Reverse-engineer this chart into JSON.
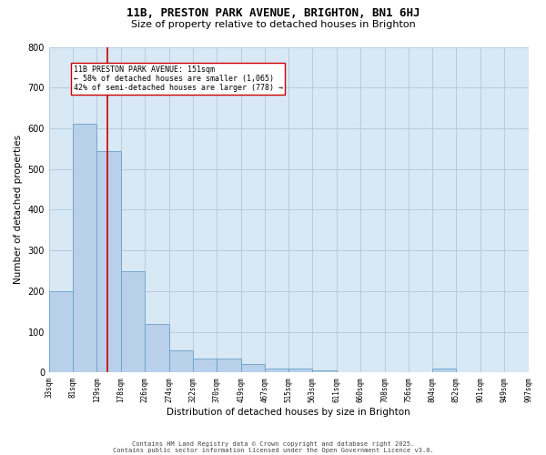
{
  "title_line1": "11B, PRESTON PARK AVENUE, BRIGHTON, BN1 6HJ",
  "title_line2": "Size of property relative to detached houses in Brighton",
  "xlabel": "Distribution of detached houses by size in Brighton",
  "ylabel": "Number of detached properties",
  "bar_edges": [
    33,
    81,
    129,
    178,
    226,
    274,
    322,
    370,
    419,
    467,
    515,
    563,
    611,
    660,
    708,
    756,
    804,
    852,
    901,
    949,
    997
  ],
  "bar_heights": [
    200,
    610,
    545,
    250,
    120,
    55,
    35,
    35,
    20,
    10,
    10,
    5,
    0,
    0,
    0,
    0,
    10,
    0,
    0,
    0
  ],
  "bar_color": "#b8d0ea",
  "bar_edge_color": "#6aa0cc",
  "vline_x": 151,
  "vline_color": "#cc0000",
  "annotation_text": "11B PRESTON PARK AVENUE: 151sqm\n← 58% of detached houses are smaller (1,065)\n42% of semi-detached houses are larger (778) →",
  "ylim": [
    0,
    800
  ],
  "yticks": [
    0,
    100,
    200,
    300,
    400,
    500,
    600,
    700,
    800
  ],
  "grid_color": "#b8ccdf",
  "bg_color": "#d8e8f4",
  "footer_line1": "Contains HM Land Registry data © Crown copyright and database right 2025.",
  "footer_line2": "Contains public sector information licensed under the Open Government Licence v3.0.",
  "tick_labels": [
    "33sqm",
    "81sqm",
    "129sqm",
    "178sqm",
    "226sqm",
    "274sqm",
    "322sqm",
    "370sqm",
    "419sqm",
    "467sqm",
    "515sqm",
    "563sqm",
    "611sqm",
    "660sqm",
    "708sqm",
    "756sqm",
    "804sqm",
    "852sqm",
    "901sqm",
    "949sqm",
    "997sqm"
  ],
  "title_fontsize": 9,
  "subtitle_fontsize": 8,
  "ylabel_fontsize": 7.5,
  "xlabel_fontsize": 7.5,
  "ytick_fontsize": 7,
  "xtick_fontsize": 5.5,
  "footer_fontsize": 5,
  "annot_fontsize": 6
}
